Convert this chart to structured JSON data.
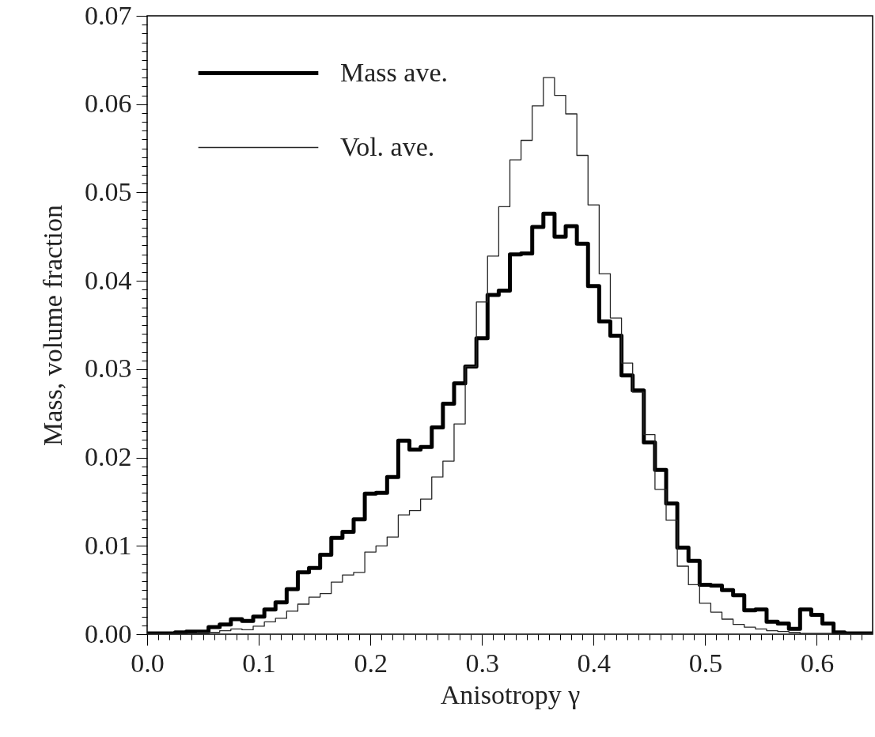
{
  "chart_data": {
    "type": "histogram",
    "xlabel": "Anisotropy γ",
    "ylabel": "Mass, volume fraction",
    "legend": "top left",
    "xlim": [
      0,
      0.65
    ],
    "ylim": [
      0,
      0.07
    ],
    "xticks": [
      {
        "value": 0,
        "label": "0.0"
      },
      {
        "value": 0.01,
        "label": null
      },
      {
        "value": 0.02,
        "label": null
      },
      {
        "value": 0.03,
        "label": null
      },
      {
        "value": 0.04,
        "label": null
      },
      {
        "value": 0.05,
        "label": null
      },
      {
        "value": 0.06,
        "label": null
      },
      {
        "value": 0.07,
        "label": null
      },
      {
        "value": 0.08,
        "label": null
      },
      {
        "value": 0.09,
        "label": null
      },
      0.1,
      {
        "value": 0.11,
        "label": null
      },
      {
        "value": 0.12,
        "label": null
      },
      {
        "value": 0.13,
        "label": null
      },
      {
        "value": 0.14,
        "label": null
      },
      {
        "value": 0.15,
        "label": null
      },
      {
        "value": 0.16,
        "label": null
      },
      {
        "value": 0.17,
        "label": null
      },
      {
        "value": 0.18,
        "label": null
      },
      {
        "value": 0.19,
        "label": null
      },
      0.2,
      {
        "value": 0.21,
        "label": null
      },
      {
        "value": 0.22,
        "label": null
      },
      {
        "value": 0.23,
        "label": null
      },
      {
        "value": 0.24,
        "label": null
      },
      {
        "value": 0.25,
        "label": null
      },
      {
        "value": 0.26,
        "label": null
      },
      {
        "value": 0.27,
        "label": null
      },
      {
        "value": 0.28,
        "label": null
      },
      {
        "value": 0.29,
        "label": null
      },
      0.3,
      {
        "value": 0.31,
        "label": null
      },
      {
        "value": 0.32,
        "label": null
      },
      {
        "value": 0.33,
        "label": null
      },
      {
        "value": 0.34,
        "label": null
      },
      {
        "value": 0.35,
        "label": null
      },
      {
        "value": 0.36,
        "label": null
      },
      {
        "value": 0.37,
        "label": null
      },
      {
        "value": 0.38,
        "label": null
      },
      {
        "value": 0.39,
        "label": null
      },
      0.4,
      {
        "value": 0.41,
        "label": null
      },
      {
        "value": 0.42,
        "label": null
      },
      {
        "value": 0.43,
        "label": null
      },
      {
        "value": 0.44,
        "label": null
      },
      {
        "value": 0.45,
        "label": null
      },
      {
        "value": 0.46,
        "label": null
      },
      {
        "value": 0.47,
        "label": null
      },
      {
        "value": 0.48,
        "label": null
      },
      {
        "value": 0.49,
        "label": null
      },
      0.5,
      {
        "value": 0.51,
        "label": null
      },
      {
        "value": 0.52,
        "label": null
      },
      {
        "value": 0.53,
        "label": null
      },
      {
        "value": 0.54,
        "label": null
      },
      {
        "value": 0.55,
        "label": null
      },
      {
        "value": 0.56,
        "label": null
      },
      {
        "value": 0.57,
        "label": null
      },
      {
        "value": 0.58,
        "label": null
      },
      {
        "value": 0.59,
        "label": null
      },
      0.6,
      {
        "value": 0.61,
        "label": null
      },
      {
        "value": 0.62,
        "label": null
      },
      {
        "value": 0.63,
        "label": null
      },
      {
        "value": 0.64,
        "label": null
      }
    ],
    "yticks": [
      {
        "value": 0,
        "label": "0.00"
      },
      {
        "value": 0.001,
        "label": null
      },
      {
        "value": 0.002,
        "label": null
      },
      {
        "value": 0.003,
        "label": null
      },
      {
        "value": 0.004,
        "label": null
      },
      {
        "value": 0.005,
        "label": null
      },
      {
        "value": 0.006,
        "label": null
      },
      {
        "value": 0.007,
        "label": null
      },
      {
        "value": 0.008,
        "label": null
      },
      {
        "value": 0.009,
        "label": null
      },
      0.01,
      {
        "value": 0.011,
        "label": null
      },
      {
        "value": 0.012,
        "label": null
      },
      {
        "value": 0.013,
        "label": null
      },
      {
        "value": 0.014,
        "label": null
      },
      {
        "value": 0.015,
        "label": null
      },
      {
        "value": 0.016,
        "label": null
      },
      {
        "value": 0.017,
        "label": null
      },
      {
        "value": 0.018,
        "label": null
      },
      {
        "value": 0.019,
        "label": null
      },
      0.02,
      {
        "value": 0.021,
        "label": null
      },
      {
        "value": 0.022,
        "label": null
      },
      {
        "value": 0.023,
        "label": null
      },
      {
        "value": 0.024,
        "label": null
      },
      {
        "value": 0.025,
        "label": null
      },
      {
        "value": 0.026,
        "label": null
      },
      {
        "value": 0.027,
        "label": null
      },
      {
        "value": 0.028,
        "label": null
      },
      {
        "value": 0.029,
        "label": null
      },
      0.03,
      {
        "value": 0.031,
        "label": null
      },
      {
        "value": 0.032,
        "label": null
      },
      {
        "value": 0.033,
        "label": null
      },
      {
        "value": 0.034,
        "label": null
      },
      {
        "value": 0.035,
        "label": null
      },
      {
        "value": 0.036,
        "label": null
      },
      {
        "value": 0.037,
        "label": null
      },
      {
        "value": 0.038,
        "label": null
      },
      {
        "value": 0.039,
        "label": null
      },
      0.04,
      {
        "value": 0.041,
        "label": null
      },
      {
        "value": 0.042,
        "label": null
      },
      {
        "value": 0.043,
        "label": null
      },
      {
        "value": 0.044,
        "label": null
      },
      {
        "value": 0.045,
        "label": null
      },
      {
        "value": 0.046,
        "label": null
      },
      {
        "value": 0.047,
        "label": null
      },
      {
        "value": 0.048,
        "label": null
      },
      {
        "value": 0.049,
        "label": null
      },
      0.05,
      {
        "value": 0.051,
        "label": null
      },
      {
        "value": 0.052,
        "label": null
      },
      {
        "value": 0.053,
        "label": null
      },
      {
        "value": 0.054,
        "label": null
      },
      {
        "value": 0.055,
        "label": null
      },
      {
        "value": 0.056,
        "label": null
      },
      {
        "value": 0.057,
        "label": null
      },
      {
        "value": 0.058,
        "label": null
      },
      {
        "value": 0.059,
        "label": null
      },
      0.06,
      {
        "value": 0.061,
        "label": null
      },
      {
        "value": 0.062,
        "label": null
      },
      {
        "value": 0.063,
        "label": null
      },
      {
        "value": 0.064,
        "label": null
      },
      {
        "value": 0.065,
        "label": null
      },
      {
        "value": 0.066,
        "label": null
      },
      {
        "value": 0.067,
        "label": null
      },
      {
        "value": 0.068,
        "label": null
      },
      {
        "value": 0.069,
        "label": null
      },
      0.07
    ],
    "bins": [
      0,
      0.005,
      0.015,
      0.025,
      0.035,
      0.045,
      0.055,
      0.065,
      0.075,
      0.085,
      0.095,
      0.105,
      0.115,
      0.125,
      0.135,
      0.145,
      0.155,
      0.165,
      0.175,
      0.185,
      0.195,
      0.205,
      0.215,
      0.225,
      0.235,
      0.245,
      0.255,
      0.265,
      0.275,
      0.285,
      0.295,
      0.305,
      0.315,
      0.325,
      0.335,
      0.345,
      0.355,
      0.365,
      0.375,
      0.385,
      0.395,
      0.405,
      0.415,
      0.425,
      0.435,
      0.445,
      0.455,
      0.465,
      0.475,
      0.485,
      0.495,
      0.505,
      0.515,
      0.525,
      0.535,
      0.545,
      0.555,
      0.565,
      0.575,
      0.585,
      0.595,
      0.605,
      0.615,
      0.625,
      0.635,
      0.645,
      0.65
    ],
    "series": [
      {
        "name": "Mass ave.",
        "color": "#000000",
        "values": [
          0.0001,
          0.0001,
          0.0001,
          0.0002,
          0.0003,
          0.0003,
          0.0008,
          0.0011,
          0.0017,
          0.0015,
          0.002,
          0.0028,
          0.0036,
          0.0051,
          0.007,
          0.0075,
          0.009,
          0.0109,
          0.0116,
          0.013,
          0.0159,
          0.016,
          0.0178,
          0.0219,
          0.0209,
          0.0212,
          0.0234,
          0.0261,
          0.0284,
          0.0303,
          0.0335,
          0.0384,
          0.0389,
          0.043,
          0.0431,
          0.0461,
          0.0476,
          0.045,
          0.0462,
          0.0442,
          0.0394,
          0.0354,
          0.0338,
          0.0293,
          0.0276,
          0.0217,
          0.0186,
          0.0148,
          0.0098,
          0.0083,
          0.0056,
          0.0055,
          0.005,
          0.0044,
          0.0027,
          0.0028,
          0.0014,
          0.0012,
          0.0006,
          0.0028,
          0.0022,
          0.0012,
          0.0002,
          0.0001,
          0.0001,
          0.0001
        ]
      },
      {
        "name": "Vol. ave.",
        "color": "#262626",
        "values": [
          0.0001,
          0.0001,
          0.0001,
          0.0001,
          0.0001,
          0.0002,
          0.0002,
          0.0004,
          0.0006,
          0.0005,
          0.0009,
          0.0014,
          0.0018,
          0.0026,
          0.0034,
          0.0042,
          0.0046,
          0.0059,
          0.0067,
          0.007,
          0.0093,
          0.01,
          0.011,
          0.0135,
          0.014,
          0.0153,
          0.0178,
          0.0196,
          0.0238,
          0.0303,
          0.0376,
          0.0428,
          0.0484,
          0.0537,
          0.0559,
          0.0598,
          0.063,
          0.061,
          0.0589,
          0.0542,
          0.0486,
          0.0408,
          0.0358,
          0.0307,
          0.0274,
          0.0226,
          0.0164,
          0.0129,
          0.0077,
          0.0056,
          0.0035,
          0.0025,
          0.0017,
          0.0011,
          0.0008,
          0.0006,
          0.0004,
          0.0003,
          0.0002,
          0.0001,
          0.0001,
          0.0001,
          0.0001,
          0.0001,
          0.0001,
          0.0001
        ]
      }
    ]
  }
}
